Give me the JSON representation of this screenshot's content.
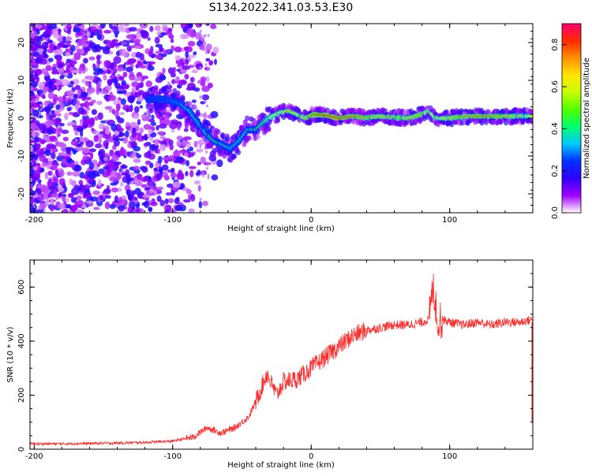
{
  "figure": {
    "title": "S134.2022.341.03.53.E30"
  },
  "chart_data": [
    {
      "type": "heatmap",
      "title": "",
      "xlabel": "Height of straight line (km)",
      "ylabel": "Frequency (Hz)",
      "xlim": [
        -203,
        160
      ],
      "ylim": [
        -25,
        25
      ],
      "xticks": [
        -200,
        -100,
        0,
        100
      ],
      "yticks": [
        -20,
        -10,
        0,
        10,
        20
      ],
      "colorbar": {
        "label": "Normalized spectral amplitude",
        "range": [
          0,
          0.9
        ],
        "ticks": [
          "0.0",
          "0.2",
          "0.4",
          "0.6",
          "0.8"
        ],
        "tick_values": [
          0,
          0.2,
          0.4,
          0.6,
          0.8
        ],
        "colors": [
          "#ffffff",
          "#a000ff",
          "#3000ff",
          "#0030ff",
          "#00c8ff",
          "#00ff70",
          "#50ff00",
          "#c8ff00",
          "#ffe600",
          "#ff9000",
          "#ff2a00",
          "#ff0070"
        ]
      },
      "ridge": {
        "x": [
          -115,
          -105,
          -95,
          -88,
          -82,
          -76,
          -70,
          -64,
          -58,
          -52,
          -46,
          -40,
          -34,
          -28,
          -22,
          -16,
          -10,
          -4,
          2,
          10,
          20,
          30,
          40,
          50,
          60,
          70,
          80,
          85,
          90,
          100,
          110,
          120,
          140,
          160
        ],
        "freq": [
          5,
          5,
          4,
          2,
          -1,
          -4,
          -6,
          -7,
          -8,
          -6,
          -3,
          -3,
          -1,
          0.5,
          1.5,
          2,
          1,
          0,
          1,
          0.8,
          0,
          0.5,
          0.2,
          0.5,
          0.3,
          0,
          1,
          2,
          0,
          0,
          0.5,
          0.5,
          0.5,
          0.5
        ],
        "amplitude": [
          0.2,
          0.25,
          0.3,
          0.35,
          0.35,
          0.4,
          0.45,
          0.4,
          0.35,
          0.35,
          0.4,
          0.45,
          0.5,
          0.6,
          0.65,
          0.7,
          0.65,
          0.7,
          0.8,
          0.85,
          0.9,
          0.8,
          0.75,
          0.7,
          0.72,
          0.7,
          0.75,
          0.55,
          0.65,
          0.7,
          0.75,
          0.78,
          0.75,
          0.6
        ]
      }
    },
    {
      "type": "line",
      "title": "",
      "xlabel": "Height of straight line (km)",
      "ylabel": "SNR (10 * v/v)",
      "xlim": [
        -203,
        160
      ],
      "ylim": [
        0,
        700
      ],
      "xticks": [
        -200,
        -100,
        0,
        100
      ],
      "yticks": [
        0,
        200,
        400,
        600
      ],
      "color": "#ff2a2a",
      "series": [
        {
          "x": [
            -203,
            -180,
            -150,
            -120,
            -100,
            -85,
            -75,
            -65,
            -55,
            -45,
            -38,
            -32,
            -25,
            -20,
            -10,
            0,
            10,
            20,
            30,
            40,
            50,
            60,
            70,
            80,
            85,
            88,
            90,
            92,
            95,
            100,
            110,
            120,
            130,
            140,
            150,
            160
          ],
          "values": [
            20,
            20,
            22,
            25,
            30,
            45,
            80,
            60,
            80,
            120,
            200,
            280,
            200,
            250,
            260,
            300,
            340,
            380,
            420,
            440,
            450,
            460,
            460,
            470,
            480,
            600,
            520,
            470,
            480,
            470,
            460,
            470,
            460,
            470,
            470,
            480
          ]
        }
      ]
    }
  ]
}
